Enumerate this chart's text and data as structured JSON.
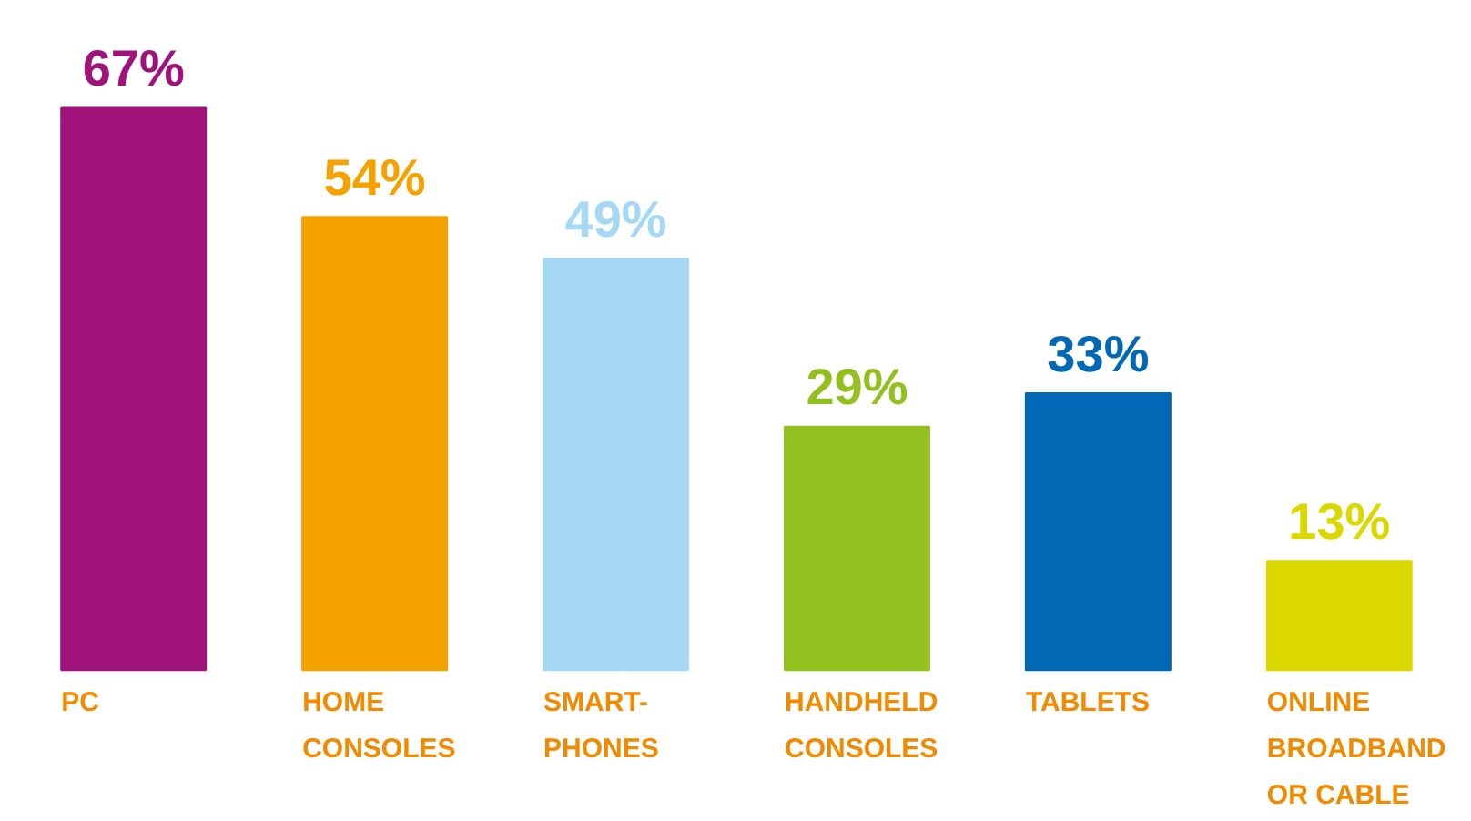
{
  "chart_data": {
    "type": "bar",
    "categories": [
      "PC",
      "HOME\nCONSOLES",
      "SMART-\nPHONES",
      "HANDHELD\nCONSOLES",
      "TABLETS",
      "ONLINE\nBROADBAND\nOR CABLE"
    ],
    "values": [
      67,
      54,
      49,
      29,
      33,
      13
    ],
    "colors": [
      "#a0137b",
      "#f5a100",
      "#a5d8f3",
      "#93c01f",
      "#0068b4",
      "#dbd800"
    ],
    "value_labels": [
      "67%",
      "54%",
      "49%",
      "29%",
      "33%",
      "13%"
    ]
  }
}
